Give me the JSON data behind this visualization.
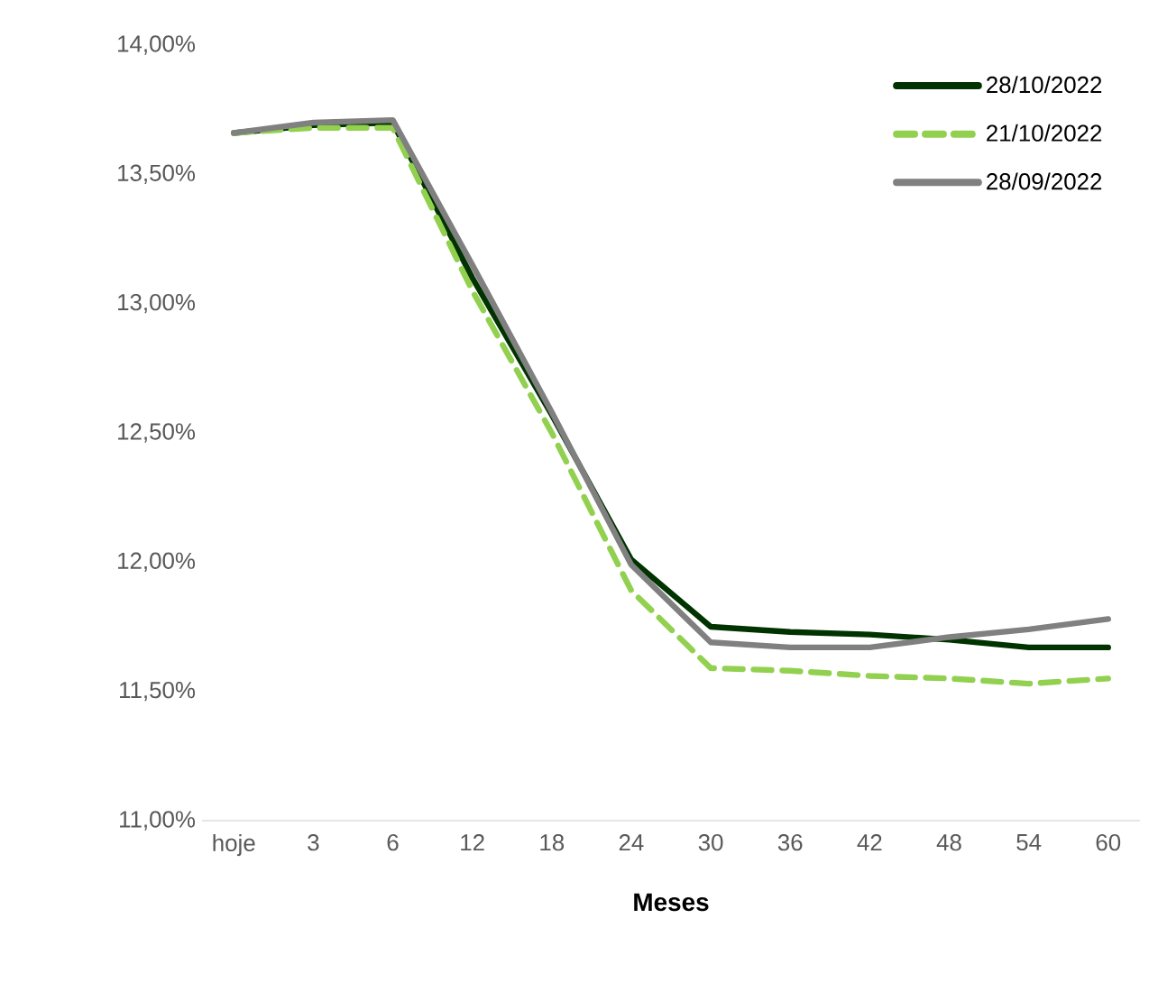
{
  "chart_data": {
    "type": "line",
    "xlabel": "Meses",
    "categories": [
      "hoje",
      "3",
      "6",
      "12",
      "18",
      "24",
      "30",
      "36",
      "42",
      "48",
      "54",
      "60"
    ],
    "ylim": [
      11,
      14
    ],
    "yticks": [
      {
        "value": 11,
        "label": "11,00%"
      },
      {
        "value": 11.5,
        "label": "11,50%"
      },
      {
        "value": 12,
        "label": "12,00%"
      },
      {
        "value": 12.5,
        "label": "12,50%"
      },
      {
        "value": 13,
        "label": "13,00%"
      },
      {
        "value": 13.5,
        "label": "13,50%"
      },
      {
        "value": 14,
        "label": "14,00%"
      }
    ],
    "legend": "top right",
    "grid": false,
    "marker": "none",
    "series": [
      {
        "name": "28/10/2022",
        "color": "#003300",
        "line_style": "solid",
        "values": [
          13.66,
          13.69,
          13.7,
          13.1,
          12.57,
          12.01,
          11.75,
          11.73,
          11.72,
          11.7,
          11.67,
          11.67
        ]
      },
      {
        "name": "21/10/2022",
        "color": "#92d050",
        "line_style": "dashed",
        "values": [
          13.66,
          13.68,
          13.68,
          13.05,
          12.5,
          11.89,
          11.59,
          11.58,
          11.56,
          11.55,
          11.53,
          11.55
        ]
      },
      {
        "name": "28/09/2022",
        "color": "#808080",
        "line_style": "solid",
        "values": [
          13.66,
          13.7,
          13.71,
          13.15,
          12.58,
          11.99,
          11.69,
          11.67,
          11.67,
          11.71,
          11.74,
          11.78
        ]
      }
    ]
  }
}
